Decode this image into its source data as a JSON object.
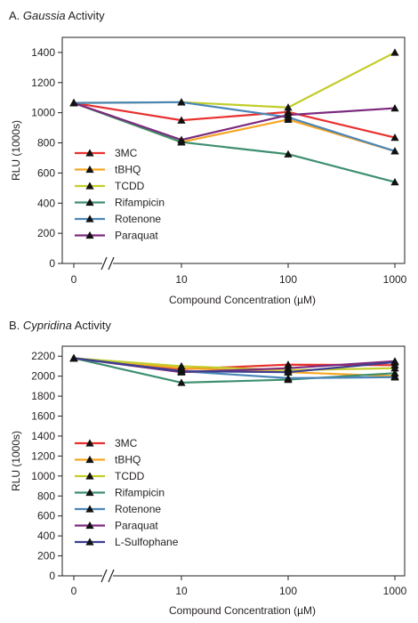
{
  "chart_data": [
    {
      "type": "line",
      "panel_label": "A.",
      "title_italic": "Gaussia",
      "title_rest": " Activity",
      "xlabel": "Compound Concentration (µM)",
      "ylabel": "RLU (1000s)",
      "x": [
        "0",
        "10",
        "100",
        "1000"
      ],
      "ylim": [
        0,
        1500
      ],
      "yticks": [
        0,
        200,
        400,
        600,
        800,
        1000,
        1200,
        1400
      ],
      "legend_position": "lower-left",
      "series": [
        {
          "name": "3MC",
          "color": "#e8312f",
          "values": [
            1065,
            950,
            1005,
            835
          ]
        },
        {
          "name": "tBHQ",
          "color": "#f6a623",
          "values": [
            1065,
            805,
            955,
            745
          ]
        },
        {
          "name": "TCDD",
          "color": "#c2cd2b",
          "values": [
            1065,
            1070,
            1035,
            1400
          ]
        },
        {
          "name": "Rifampicin",
          "color": "#3d8f6f",
          "values": [
            1065,
            805,
            725,
            540
          ]
        },
        {
          "name": "Rotenone",
          "color": "#4a86b8",
          "values": [
            1065,
            1070,
            970,
            745
          ]
        },
        {
          "name": "Paraquat",
          "color": "#7c2a7d",
          "values": [
            1065,
            820,
            985,
            1030
          ]
        }
      ]
    },
    {
      "type": "line",
      "panel_label": "B.",
      "title_italic": "Cypridina",
      "title_rest": " Activity",
      "xlabel": "Compound Concentration (µM)",
      "ylabel": "RLU (1000s)",
      "x": [
        "0",
        "10",
        "100",
        "1000"
      ],
      "ylim": [
        0,
        2300
      ],
      "yticks": [
        0,
        200,
        400,
        600,
        800,
        1000,
        1200,
        1400,
        1600,
        1800,
        2000,
        2200
      ],
      "legend_position": "lower-left",
      "series": [
        {
          "name": "3MC",
          "color": "#e8312f",
          "values": [
            2180,
            2070,
            2115,
            2110
          ]
        },
        {
          "name": "tBHQ",
          "color": "#f6a623",
          "values": [
            2180,
            2080,
            2040,
            2000
          ]
        },
        {
          "name": "TCDD",
          "color": "#c2cd2b",
          "values": [
            2180,
            2100,
            2060,
            2080
          ]
        },
        {
          "name": "Rifampicin",
          "color": "#3d8f6f",
          "values": [
            2180,
            1935,
            1965,
            2030
          ]
        },
        {
          "name": "Rotenone",
          "color": "#4a86b8",
          "values": [
            2180,
            2050,
            1980,
            1990
          ]
        },
        {
          "name": "Paraquat",
          "color": "#7c2a7d",
          "values": [
            2180,
            2040,
            2080,
            2150
          ]
        },
        {
          "name": "L-Sulfophane",
          "color": "#3c3f8f",
          "values": [
            2180,
            2050,
            2040,
            2140
          ]
        }
      ]
    }
  ]
}
